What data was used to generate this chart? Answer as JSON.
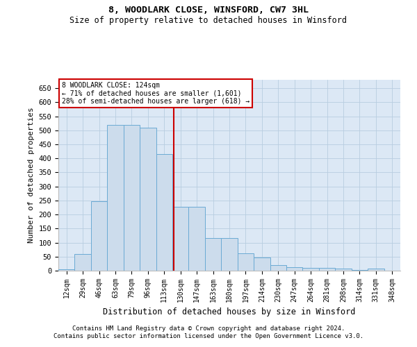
{
  "title": "8, WOODLARK CLOSE, WINSFORD, CW7 3HL",
  "subtitle": "Size of property relative to detached houses in Winsford",
  "xlabel": "Distribution of detached houses by size in Winsford",
  "ylabel": "Number of detached properties",
  "categories": [
    "12sqm",
    "29sqm",
    "46sqm",
    "63sqm",
    "79sqm",
    "96sqm",
    "113sqm",
    "130sqm",
    "147sqm",
    "163sqm",
    "180sqm",
    "197sqm",
    "214sqm",
    "230sqm",
    "247sqm",
    "264sqm",
    "281sqm",
    "298sqm",
    "314sqm",
    "331sqm",
    "348sqm"
  ],
  "bar_values": [
    5,
    60,
    248,
    520,
    520,
    510,
    415,
    228,
    228,
    115,
    115,
    63,
    46,
    20,
    12,
    9,
    9,
    7,
    2,
    7,
    0
  ],
  "bar_color": "#ccdcec",
  "bar_edge_color": "#6aaad4",
  "vline_color": "#cc0000",
  "vline_position": 6.6,
  "annotation_line1": "8 WOODLARK CLOSE: 124sqm",
  "annotation_line2": "← 71% of detached houses are smaller (1,601)",
  "annotation_line3": "28% of semi-detached houses are larger (618) →",
  "ann_box_facecolor": "#ffffff",
  "ann_box_edgecolor": "#cc0000",
  "ylim": [
    0,
    680
  ],
  "yticks": [
    0,
    50,
    100,
    150,
    200,
    250,
    300,
    350,
    400,
    450,
    500,
    550,
    600,
    650
  ],
  "bg_color": "#ffffff",
  "plot_bg_color": "#dce8f5",
  "grid_color": "#b8cde0",
  "footer1": "Contains HM Land Registry data © Crown copyright and database right 2024.",
  "footer2": "Contains public sector information licensed under the Open Government Licence v3.0."
}
